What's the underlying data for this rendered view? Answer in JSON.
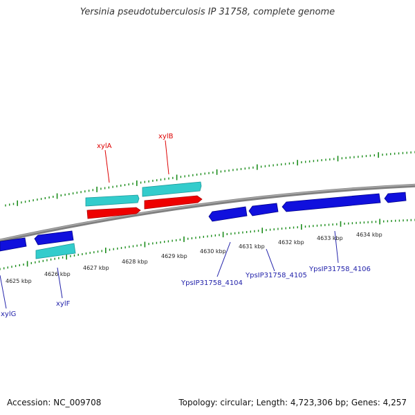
{
  "title": "Yersinia pseudotuberculosis IP 31758, complete genome",
  "footer": {
    "accession": "Accession: NC_009708",
    "summary": "Topology: circular; Length: 4,723,306 bp; Genes: 4,257"
  },
  "colors": {
    "backbone": "#808080",
    "tick": "#1a8c1a",
    "gene_label_red": "#dd0000",
    "gene_label_blue": "#2222aa",
    "forward_cds": "#ee0000",
    "forward_rna": "#33cccc",
    "reverse_cds": "#1010dd",
    "reverse_rna": "#33cccc"
  },
  "scale_labels": [
    "4625 kbp",
    "4626 kbp",
    "4627 kbp",
    "4628 kbp",
    "4629 kbp",
    "4630 kbp",
    "4631 kbp",
    "4632 kbp",
    "4633 kbp",
    "4634 kbp"
  ],
  "gene_labels": {
    "xylA": "xylA",
    "xylB": "xylB",
    "xylG": "xylG",
    "xylF": "xylF",
    "g4104": "YpsIP31758_4104",
    "g4105": "YpsIP31758_4105",
    "g4106": "YpsIP31758_4106"
  }
}
